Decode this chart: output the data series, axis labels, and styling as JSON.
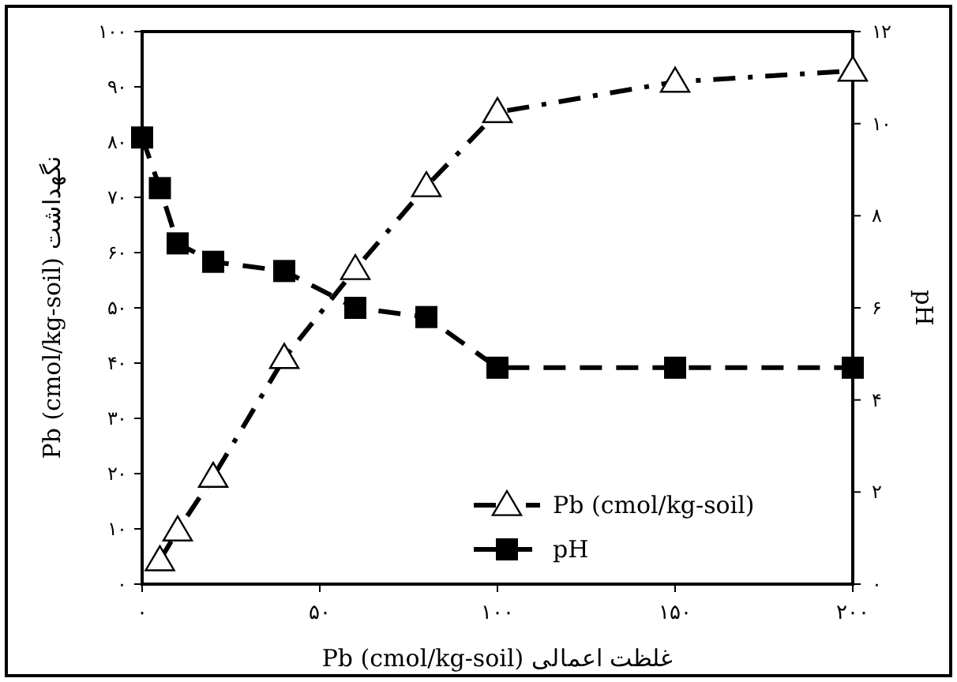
{
  "chart_data": {
    "type": "line",
    "xlabel": "غلظت اعمالی Pb (cmol/kg-soil)",
    "ylabel": "نگهداشت Pb (cmol/kg-soil)",
    "y2label": "pH",
    "xlim": [
      0,
      200
    ],
    "xticks": [
      {
        "value": 0,
        "label": "۰"
      },
      {
        "value": 50,
        "label": "۵۰"
      },
      {
        "value": 100,
        "label": "۱۰۰"
      },
      {
        "value": 150,
        "label": "۱۵۰"
      },
      {
        "value": 200,
        "label": "۲۰۰"
      }
    ],
    "ylim": [
      0,
      100
    ],
    "yticks": [
      {
        "value": 0,
        "label": "۰"
      },
      {
        "value": 10,
        "label": "۱۰"
      },
      {
        "value": 20,
        "label": "۲۰"
      },
      {
        "value": 30,
        "label": "۳۰"
      },
      {
        "value": 40,
        "label": "۴۰"
      },
      {
        "value": 50,
        "label": "۵۰"
      },
      {
        "value": 60,
        "label": "۶۰"
      },
      {
        "value": 70,
        "label": "۷۰"
      },
      {
        "value": 80,
        "label": "۸۰"
      },
      {
        "value": 90,
        "label": "۹۰"
      },
      {
        "value": 100,
        "label": "۱۰۰"
      }
    ],
    "y2lim": [
      0,
      12
    ],
    "y2ticks": [
      {
        "value": 0,
        "label": "۰"
      },
      {
        "value": 2,
        "label": "۲"
      },
      {
        "value": 4,
        "label": "۴"
      },
      {
        "value": 6,
        "label": "۶"
      },
      {
        "value": 8,
        "label": "۸"
      },
      {
        "value": 10,
        "label": "۱۰"
      },
      {
        "value": 12,
        "label": "۱۲"
      }
    ],
    "series": [
      {
        "name": "Pb (cmol/kg-soil)",
        "color": "#000000",
        "marker": "triangle",
        "line_style": "dashdot",
        "x": [
          5,
          10,
          20,
          40,
          60,
          80,
          100,
          150,
          200
        ],
        "values": [
          4.3,
          9.7,
          19.4,
          40.9,
          57,
          72,
          85.4,
          90.9,
          92.9
        ]
      },
      {
        "name": "pH",
        "color": "#000000",
        "marker": "square",
        "line_style": "dashed",
        "axis": "y2",
        "x": [
          0,
          5,
          10,
          20,
          40,
          60,
          80,
          100,
          150,
          200
        ],
        "values": [
          9.7,
          8.6,
          7.4,
          7.0,
          6.8,
          6.0,
          5.8,
          4.7,
          4.7,
          4.7
        ]
      }
    ],
    "legend": "bottom right",
    "grid": false
  }
}
